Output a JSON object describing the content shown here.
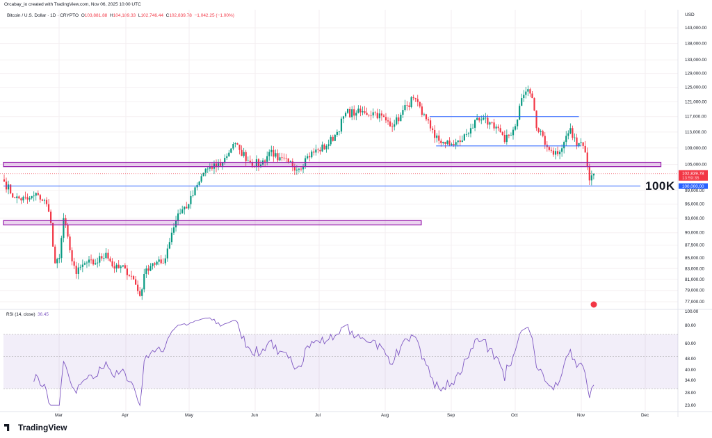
{
  "header": {
    "credit": "Orcabay_io created with TradingView.com, Nov 06, 2025 10:00 UTC",
    "symbol": "Bitcoin / U.S. Dollar · 1D · CRYPTO",
    "o_label": "O",
    "o": "103,881.88",
    "h_label": "H",
    "h": "104,189.33",
    "l_label": "L",
    "l": "102,746.44",
    "c_label": "C",
    "c": "102,839.78",
    "change": "−1,042.25 (−1.00%)",
    "currency": "USD"
  },
  "current_price": {
    "label": "102,839.78",
    "countdown": "13:59:35",
    "value": 102839.78
  },
  "level_label": {
    "price": "100,000.00",
    "text": "100K",
    "value": 100000
  },
  "rsi": {
    "label": "RSI (14, close)",
    "value": "36.45",
    "ticks": [
      "100.00",
      "80.00",
      "60.00",
      "48.00",
      "40.00",
      "34.00",
      "28.00",
      "23.00"
    ]
  },
  "brand": "TradingView",
  "colors": {
    "up": "#089981",
    "down": "#f23645",
    "rsi": "#7e57c2",
    "box": "#9c27b0",
    "line": "#2962ff"
  },
  "chart_data": {
    "type": "candlestick",
    "title": "Bitcoin / U.S. Dollar · 1D",
    "yscale": "log",
    "price_ticks": [
      "143,000.00",
      "138,000.00",
      "133,000.00",
      "129,000.00",
      "125,000.00",
      "121,000.00",
      "117,000.00",
      "113,000.00",
      "109,000.00",
      "105,000.00",
      "99,000.00",
      "96,000.00",
      "93,000.00",
      "90,000.00",
      "87,500.00",
      "85,000.00",
      "83,000.00",
      "81,000.00",
      "79,000.00",
      "77,000.00"
    ],
    "time_ticks": [
      "Mar",
      "Apr",
      "May",
      "Jun",
      "Jul",
      "Aug",
      "Sep",
      "Oct",
      "Nov",
      "Dec"
    ],
    "close_waypoints_day_price": [
      [
        0,
        101000
      ],
      [
        5,
        97300
      ],
      [
        11,
        97000
      ],
      [
        16,
        98000
      ],
      [
        20,
        96000
      ],
      [
        22,
        92000
      ],
      [
        24,
        84000
      ],
      [
        26,
        85000
      ],
      [
        28,
        93000
      ],
      [
        31,
        86500
      ],
      [
        34,
        82000
      ],
      [
        38,
        84000
      ],
      [
        43,
        84000
      ],
      [
        48,
        86000
      ],
      [
        52,
        83000
      ],
      [
        57,
        83000
      ],
      [
        61,
        81000
      ],
      [
        64,
        78000
      ],
      [
        67,
        83000
      ],
      [
        70,
        84000
      ],
      [
        75,
        84000
      ],
      [
        79,
        90000
      ],
      [
        82,
        94000
      ],
      [
        87,
        96000
      ],
      [
        92,
        101000
      ],
      [
        95,
        104000
      ],
      [
        98,
        104000
      ],
      [
        103,
        105500
      ],
      [
        108,
        110000
      ],
      [
        111,
        108500
      ],
      [
        116,
        105500
      ],
      [
        121,
        105000
      ],
      [
        126,
        108500
      ],
      [
        129,
        106000
      ],
      [
        134,
        105500
      ],
      [
        139,
        104000
      ],
      [
        143,
        107000
      ],
      [
        148,
        108500
      ],
      [
        152,
        109500
      ],
      [
        157,
        113000
      ],
      [
        161,
        118000
      ],
      [
        166,
        118000
      ],
      [
        170,
        118000
      ],
      [
        175,
        118000
      ],
      [
        180,
        116000
      ],
      [
        184,
        115000
      ],
      [
        187,
        117500
      ],
      [
        190,
        120000
      ],
      [
        193,
        122000
      ],
      [
        197,
        117500
      ],
      [
        200,
        116000
      ],
      [
        203,
        111500
      ],
      [
        207,
        110500
      ],
      [
        210,
        109700
      ],
      [
        215,
        110500
      ],
      [
        220,
        114000
      ],
      [
        224,
        116000
      ],
      [
        229,
        115500
      ],
      [
        233,
        114000
      ],
      [
        236,
        110500
      ],
      [
        241,
        114500
      ],
      [
        244,
        122000
      ],
      [
        247,
        124500
      ],
      [
        249,
        122000
      ],
      [
        251,
        114000
      ],
      [
        254,
        112000
      ],
      [
        257,
        108500
      ],
      [
        261,
        107500
      ],
      [
        264,
        110500
      ],
      [
        267,
        114000
      ],
      [
        270,
        109500
      ],
      [
        273,
        109500
      ],
      [
        275,
        104500
      ],
      [
        276,
        101300
      ],
      [
        278,
        102840
      ]
    ],
    "annotations": [
      {
        "type": "box",
        "from_day": 0,
        "to_day": 310,
        "low": 104500,
        "high": 105500
      },
      {
        "type": "box",
        "from_day": 0,
        "to_day": 197,
        "low": 91600,
        "high": 92500
      },
      {
        "type": "hline",
        "from_day": 0,
        "to_day": 300,
        "price": 100000
      },
      {
        "type": "hline",
        "from_day": 201,
        "to_day": 271,
        "price": 117000
      },
      {
        "type": "hline",
        "from_day": 204,
        "to_day": 272,
        "price": 109500
      }
    ]
  }
}
